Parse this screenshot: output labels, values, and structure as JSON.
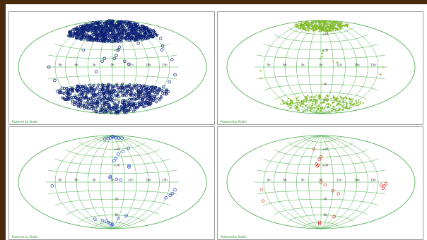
{
  "window": {
    "background": "#4a2a0e",
    "canvas": "#ffffff"
  },
  "panels": [
    {
      "id": "top-left",
      "credit": "Powered by Aladin",
      "marker": "circle",
      "color": "#0b1f73"
    },
    {
      "id": "top-right",
      "credit": "Powered by Aladin",
      "marker": "plus",
      "color": "#7db81e"
    },
    {
      "id": "bottom-left",
      "credit": "Powered by Aladin",
      "marker": "circle",
      "color": "#2340d8"
    },
    {
      "id": "bottom-right",
      "credit": "Powered by Aladin",
      "marker": "circle",
      "color": "#e0352b"
    }
  ],
  "grid_color": "#44a844",
  "chart_data": [
    {
      "type": "scatter",
      "projection": "aitoff-hammer",
      "grid": true,
      "lon_tick_labels": [
        "15h",
        "18h",
        "21h",
        "0h",
        "3h",
        "6h",
        "9h"
      ],
      "lat_tick_labels": [
        "+60",
        "+30",
        "-30",
        "-60"
      ],
      "series": [
        {
          "points": [
            [
              -150,
              62
            ],
            [
              -120,
              66
            ],
            [
              -90,
              70
            ],
            [
              -60,
              64
            ],
            [
              -30,
              72
            ],
            [
              0,
              68
            ],
            [
              30,
              66
            ],
            [
              60,
              70
            ],
            [
              90,
              64
            ],
            [
              120,
              62
            ],
            [
              150,
              60
            ],
            [
              -165,
              40
            ],
            [
              -150,
              30
            ],
            [
              -140,
              25
            ],
            [
              -160,
              10
            ],
            [
              -170,
              -10
            ],
            [
              -160,
              -20
            ],
            [
              -150,
              -28
            ],
            [
              -120,
              -35
            ],
            [
              -90,
              -38
            ],
            [
              -60,
              -40
            ],
            [
              -30,
              -36
            ],
            [
              0,
              -38
            ],
            [
              30,
              -40
            ],
            [
              60,
              -37
            ],
            [
              90,
              -39
            ],
            [
              120,
              -35
            ],
            [
              150,
              -30
            ],
            [
              160,
              -18
            ],
            [
              170,
              0
            ],
            [
              -20,
              35
            ],
            [
              -15,
              30
            ],
            [
              -10,
              20
            ],
            [
              -5,
              15
            ],
            [
              -30,
              10
            ],
            [
              20,
              15
            ],
            [
              25,
              10
            ],
            [
              40,
              -8
            ],
            [
              -40,
              5
            ],
            [
              -80,
              40
            ],
            [
              -100,
              45
            ],
            [
              80,
              28
            ]
          ],
          "dense_caps": {
            "north_above_lat": 45,
            "south_below_lat": -30
          }
        }
      ]
    },
    {
      "type": "scatter",
      "projection": "aitoff-hammer",
      "grid": true,
      "lon_tick_labels": [
        "15h",
        "18h",
        "21h",
        "0h",
        "3h",
        "6h",
        "9h"
      ],
      "lat_tick_labels": [
        "+60",
        "+30",
        "-30",
        "-60"
      ],
      "series": [
        {
          "points": [
            [
              -150,
              72
            ],
            [
              -120,
              75
            ],
            [
              -90,
              78
            ],
            [
              -60,
              74
            ],
            [
              -30,
              80
            ],
            [
              0,
              76
            ],
            [
              30,
              74
            ],
            [
              60,
              78
            ],
            [
              90,
              73
            ],
            [
              120,
              72
            ],
            [
              150,
              70
            ],
            [
              -160,
              -55
            ],
            [
              -130,
              -62
            ],
            [
              -100,
              -65
            ],
            [
              -70,
              -60
            ],
            [
              -40,
              -68
            ],
            [
              -10,
              -64
            ],
            [
              20,
              -66
            ],
            [
              50,
              -62
            ],
            [
              80,
              -68
            ],
            [
              110,
              -60
            ],
            [
              140,
              -58
            ],
            [
              -165,
              0
            ],
            [
              -160,
              -10
            ],
            [
              -5,
              28
            ],
            [
              -4,
              24
            ],
            [
              -3,
              18
            ],
            [
              2,
              15
            ],
            [
              -30,
              10
            ],
            [
              -40,
              8
            ],
            [
              160,
              -5
            ],
            [
              165,
              -15
            ]
          ],
          "dense_caps": {
            "north_above_lat": 65,
            "south_below_lat": -50
          }
        }
      ]
    },
    {
      "type": "scatter",
      "projection": "aitoff-hammer",
      "grid": true,
      "lon_tick_labels": [
        "15h",
        "18h",
        "21h",
        "0h",
        "3h",
        "6h",
        "9h"
      ],
      "lat_tick_labels": [
        "+60",
        "+30",
        "-30",
        "-60"
      ],
      "series": [
        {
          "points": [
            [
              -120,
              80
            ],
            [
              -90,
              82
            ],
            [
              -60,
              84
            ],
            [
              -30,
              86
            ],
            [
              0,
              88
            ],
            [
              30,
              84
            ],
            [
              60,
              82
            ],
            [
              90,
              80
            ],
            [
              -70,
              60
            ],
            [
              -40,
              55
            ],
            [
              -20,
              50
            ],
            [
              -10,
              42
            ],
            [
              -5,
              38
            ],
            [
              -45,
              28
            ],
            [
              -44,
              26
            ],
            [
              5,
              10
            ],
            [
              6,
              8
            ],
            [
              -10,
              5
            ],
            [
              -20,
              4
            ],
            [
              -170,
              -10
            ],
            [
              -165,
              -15
            ],
            [
              -160,
              -18
            ],
            [
              -150,
              -22
            ],
            [
              160,
              -5
            ],
            [
              -60,
              -60
            ],
            [
              -30,
              -66
            ],
            [
              0,
              -80
            ],
            [
              10,
              -82
            ],
            [
              20,
              -78
            ],
            [
              30,
              -75
            ],
            [
              40,
              -72
            ],
            [
              60,
              -70
            ],
            [
              90,
              -65
            ]
          ]
        }
      ]
    },
    {
      "type": "scatter",
      "projection": "aitoff-hammer",
      "grid": true,
      "lon_tick_labels": [
        "15h",
        "18h",
        "21h",
        "0h",
        "3h",
        "6h",
        "9h"
      ],
      "lat_tick_labels": [
        "+60",
        "+30",
        "-30",
        "-60"
      ],
      "series": [
        {
          "points": [
            [
              -175,
              -2
            ],
            [
              -170,
              -5
            ],
            [
              -168,
              -8
            ],
            [
              -160,
              -4
            ],
            [
              -45,
              -20
            ],
            [
              -30,
              -15
            ],
            [
              0,
              45
            ],
            [
              5,
              40
            ],
            [
              8,
              30
            ],
            [
              10,
              28
            ],
            [
              12,
              32
            ],
            [
              0,
              0
            ],
            [
              -10,
              -5
            ],
            [
              160,
              -10
            ],
            [
              170,
              -25
            ],
            [
              -60,
              -62
            ],
            [
              10,
              -75
            ],
            [
              12,
              -78
            ],
            [
              30,
              60
            ]
          ]
        }
      ]
    }
  ]
}
